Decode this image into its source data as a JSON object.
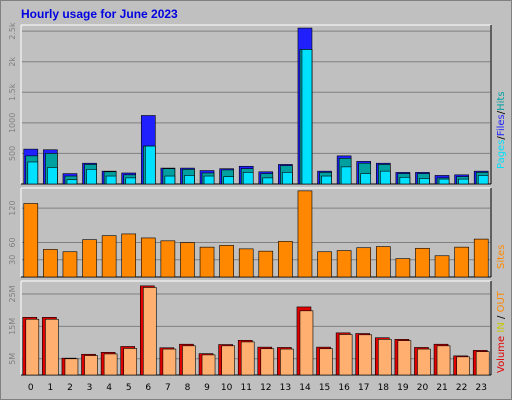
{
  "colors": {
    "background": "#c0c0c0",
    "title": "#0000e0",
    "pages": "#2020ff",
    "files": "#00a0a0",
    "hits": "#00e0ff",
    "sites": "#ff8800",
    "volume_in": "#e00000",
    "volume_out": "#ffb070"
  },
  "chart_data": {
    "title": "Hourly usage for June 2023",
    "type": "bar",
    "categories": [
      "0",
      "1",
      "2",
      "3",
      "4",
      "5",
      "6",
      "7",
      "8",
      "9",
      "10",
      "11",
      "12",
      "13",
      "14",
      "15",
      "16",
      "17",
      "18",
      "19",
      "20",
      "21",
      "22",
      "23"
    ],
    "grid": true,
    "panels": [
      {
        "name": "hits_files_pages",
        "legend": [
          "Pages",
          "Files",
          "Hits"
        ],
        "ytick_labels": [
          "500",
          "1000",
          "1.5k",
          "2k",
          "2.5k"
        ],
        "yticks": [
          500,
          1000,
          1500,
          2000,
          2500
        ],
        "ylim": [
          0,
          2600
        ],
        "series": [
          {
            "name": "Pages",
            "values": [
              570,
              560,
              170,
              340,
              210,
              180,
              1120,
              260,
              260,
              220,
              250,
              290,
              200,
              320,
              2550,
              210,
              460,
              370,
              340,
              190,
              190,
              140,
              150,
              210
            ]
          },
          {
            "name": "Files",
            "values": [
              460,
              500,
              130,
              320,
              200,
              150,
              620,
              250,
              240,
              180,
              230,
              250,
              170,
              300,
              2200,
              190,
              420,
              340,
              320,
              170,
              170,
              100,
              120,
              190
            ]
          },
          {
            "name": "Hits",
            "values": [
              360,
              270,
              70,
              240,
              130,
              100,
              620,
              130,
              140,
              130,
              120,
              190,
              100,
              190,
              2200,
              130,
              280,
              170,
              210,
              110,
              90,
              80,
              80,
              140
            ]
          }
        ]
      },
      {
        "name": "sites",
        "legend": [
          "Sites"
        ],
        "ytick_labels": [
          "30",
          "60",
          "120"
        ],
        "yticks": [
          30,
          60,
          120
        ],
        "ylim": [
          0,
          155
        ],
        "series": [
          {
            "name": "Sites",
            "values": [
              128,
              48,
              44,
              65,
              72,
              75,
              68,
              63,
              60,
              52,
              55,
              49,
              45,
              62,
              150,
              44,
              46,
              51,
              53,
              32,
              50,
              37,
              52,
              66
            ]
          }
        ]
      },
      {
        "name": "volume",
        "legend": [
          "Volume",
          "IN",
          "/",
          "OUT"
        ],
        "ytick_labels": [
          "5M",
          "15M",
          "25M"
        ],
        "yticks": [
          5,
          15,
          25
        ],
        "ylim": [
          0,
          29
        ],
        "series": [
          {
            "name": "IN",
            "values": [
              17.8,
              17.8,
              5.2,
              6.4,
              7.0,
              8.8,
              27.5,
              8.4,
              9.5,
              6.6,
              9.4,
              10.7,
              8.6,
              8.5,
              21.0,
              8.6,
              13.0,
              12.8,
              11.5,
              11.0,
              8.5,
              9.5,
              5.9,
              7.6
            ]
          },
          {
            "name": "OUT",
            "values": [
              17.2,
              17.2,
              5.0,
              6.0,
              6.5,
              8.2,
              27.0,
              8.0,
              9.0,
              6.2,
              9.0,
              10.2,
              8.1,
              8.0,
              19.8,
              8.1,
              12.5,
              12.4,
              11.0,
              10.6,
              8.0,
              9.0,
              5.6,
              7.2
            ]
          }
        ]
      }
    ]
  }
}
